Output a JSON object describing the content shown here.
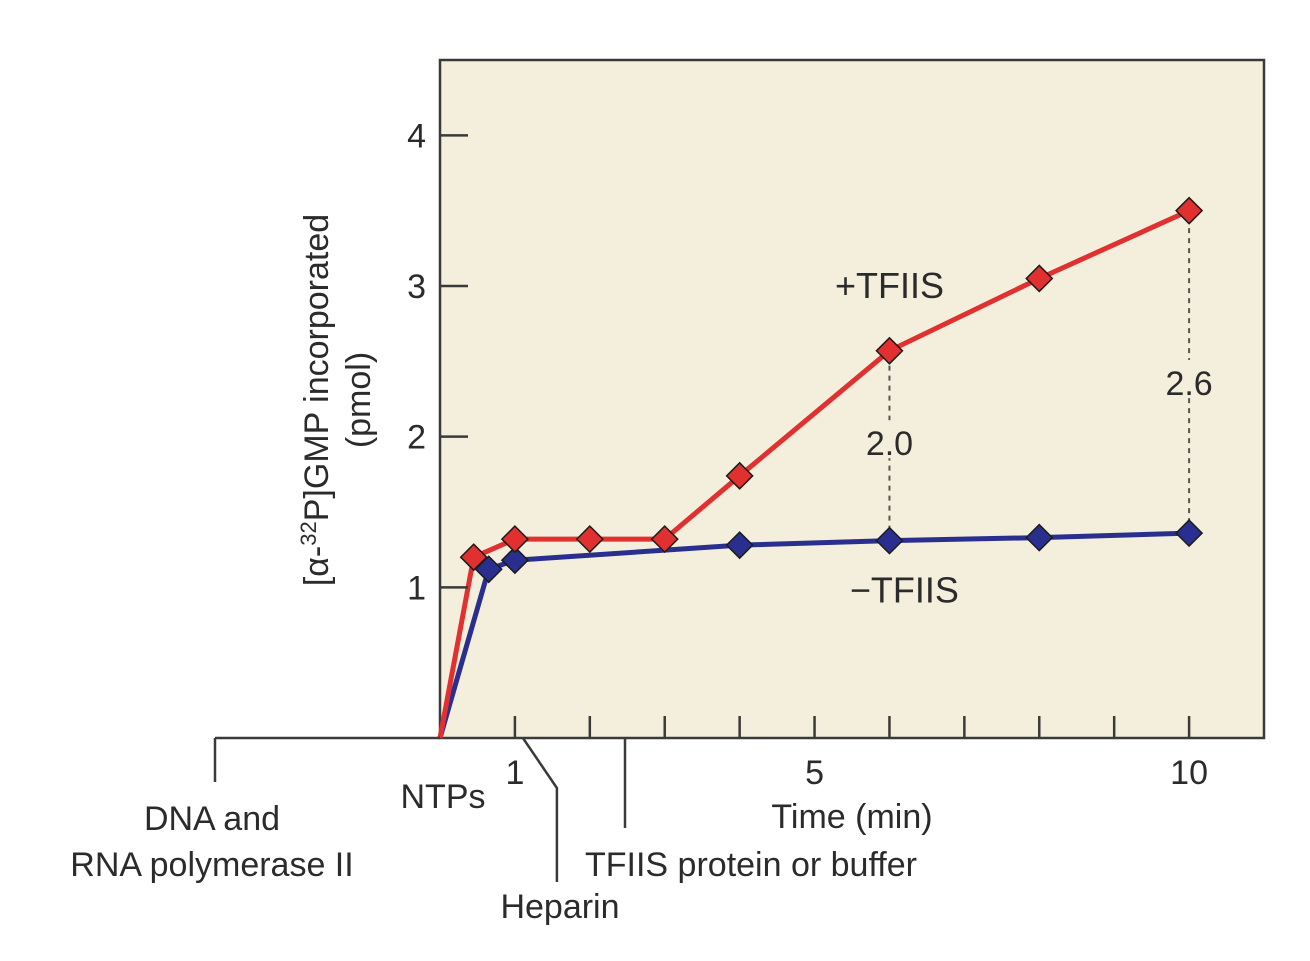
{
  "chart_data": {
    "type": "line",
    "xlabel": "Time (min)",
    "ylabel": {
      "prefix": "[α-",
      "superscript": "32",
      "suffix": "P]GMP incorporated",
      "unit": "(pmol)"
    },
    "xlim": [
      0,
      11
    ],
    "ylim": [
      0,
      4.5
    ],
    "x_ticks": [
      0,
      1,
      2,
      3,
      4,
      5,
      6,
      7,
      8,
      9,
      10,
      11
    ],
    "x_tick_labels": [
      {
        "x": 1,
        "text": "1"
      },
      {
        "x": 5,
        "text": "5"
      },
      {
        "x": 10,
        "text": "10"
      }
    ],
    "y_ticks": [
      {
        "y": 1,
        "text": "1"
      },
      {
        "y": 2,
        "text": "2"
      },
      {
        "y": 3,
        "text": "3"
      },
      {
        "y": 4,
        "text": "4"
      }
    ],
    "series": [
      {
        "name": "+TFIIS",
        "color": "#e03030",
        "x": [
          0,
          0.45,
          1,
          2,
          3,
          4,
          6,
          8,
          10
        ],
        "y": [
          0,
          1.2,
          1.32,
          1.32,
          1.32,
          1.74,
          2.57,
          3.05,
          3.5
        ],
        "label": "+TFIIS",
        "label_at": [
          6,
          3.0
        ]
      },
      {
        "name": "−TFIIS",
        "color": "#2a2f8f",
        "x": [
          0,
          0.65,
          1,
          4,
          6,
          8,
          10
        ],
        "y": [
          0,
          1.12,
          1.18,
          1.28,
          1.31,
          1.33,
          1.36
        ],
        "label": "−TFIIS",
        "label_at": [
          6.2,
          0.98
        ]
      }
    ],
    "annotations": [
      {
        "x": 6,
        "y_from": 1.31,
        "y_to": 2.57,
        "text": "2.0",
        "label_y": 1.95
      },
      {
        "x": 10,
        "y_from": 1.36,
        "y_to": 3.5,
        "text": "2.6",
        "label_y": 2.35
      }
    ],
    "events": [
      {
        "name": "dna",
        "x": -3,
        "lines": [
          "DNA and",
          "RNA polymerase II"
        ]
      },
      {
        "name": "ntps",
        "x": 0,
        "lines": [
          "NTPs"
        ]
      },
      {
        "name": "heparin",
        "x": 1,
        "lines": [
          "Heparin"
        ]
      },
      {
        "name": "tfiis",
        "x": 2.4,
        "lines": [
          "TFIIS protein or buffer"
        ]
      }
    ],
    "plot_background": "#f3efdc"
  }
}
